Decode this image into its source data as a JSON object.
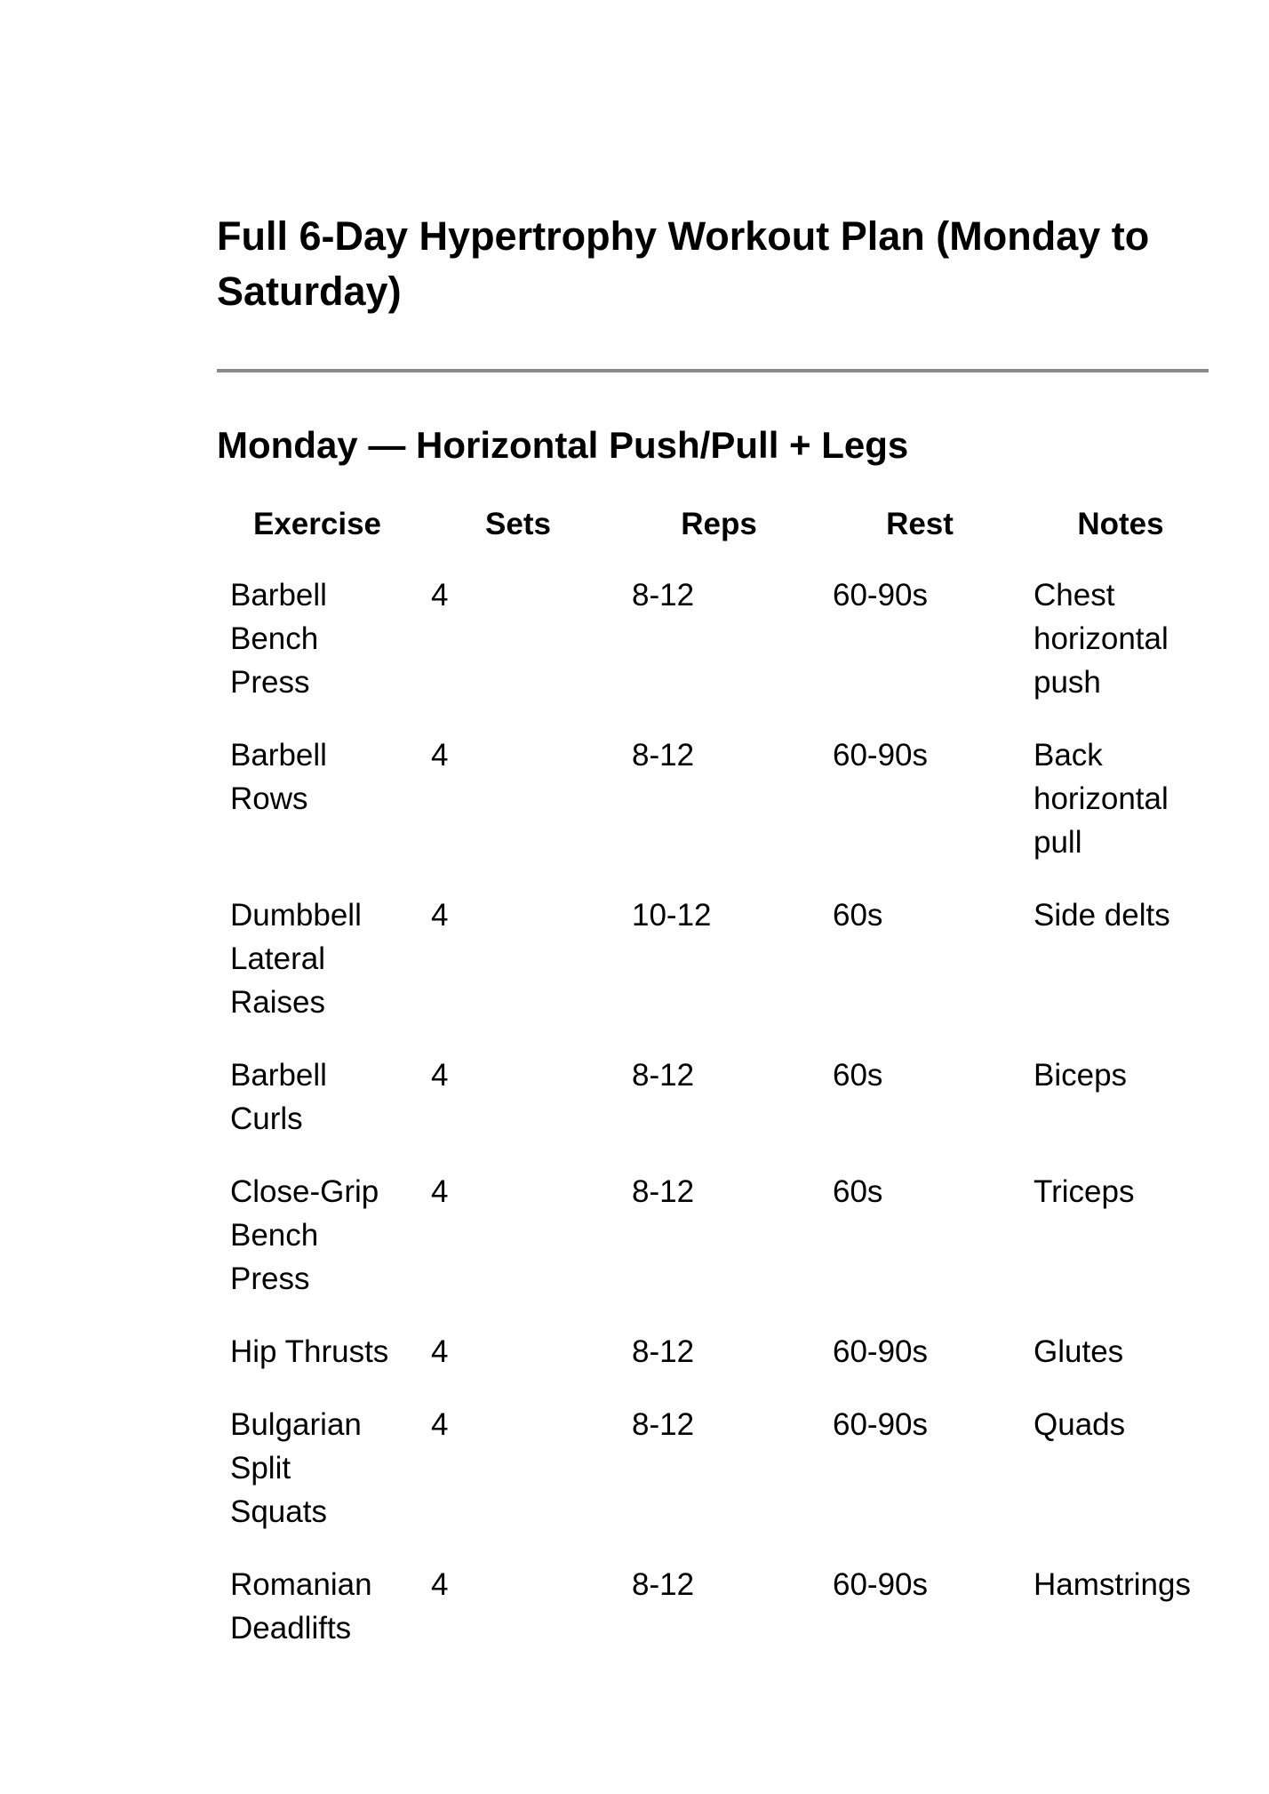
{
  "document": {
    "title": "Full 6-Day Hypertrophy Workout Plan (Monday to Saturday)",
    "divider_color": "#8a8a8a",
    "section": {
      "heading": "Monday — Horizontal Push/Pull + Legs",
      "table": {
        "columns": [
          "Exercise",
          "Sets",
          "Reps",
          "Rest",
          "Notes"
        ],
        "rows": [
          [
            "Barbell Bench Press",
            "4",
            "8-12",
            "60-90s",
            "Chest horizontal push"
          ],
          [
            "Barbell Rows",
            "4",
            "8-12",
            "60-90s",
            "Back horizontal pull"
          ],
          [
            "Dumbbell Lateral Raises",
            "4",
            "10-12",
            "60s",
            "Side delts"
          ],
          [
            "Barbell Curls",
            "4",
            "8-12",
            "60s",
            "Biceps"
          ],
          [
            "Close-Grip Bench Press",
            "4",
            "8-12",
            "60s",
            "Triceps"
          ],
          [
            "Hip Thrusts",
            "4",
            "8-12",
            "60-90s",
            "Glutes"
          ],
          [
            "Bulgarian Split Squats",
            "4",
            "8-12",
            "60-90s",
            "Quads"
          ],
          [
            "Romanian Deadlifts",
            "4",
            "8-12",
            "60-90s",
            "Hamstrings"
          ]
        ]
      }
    }
  }
}
